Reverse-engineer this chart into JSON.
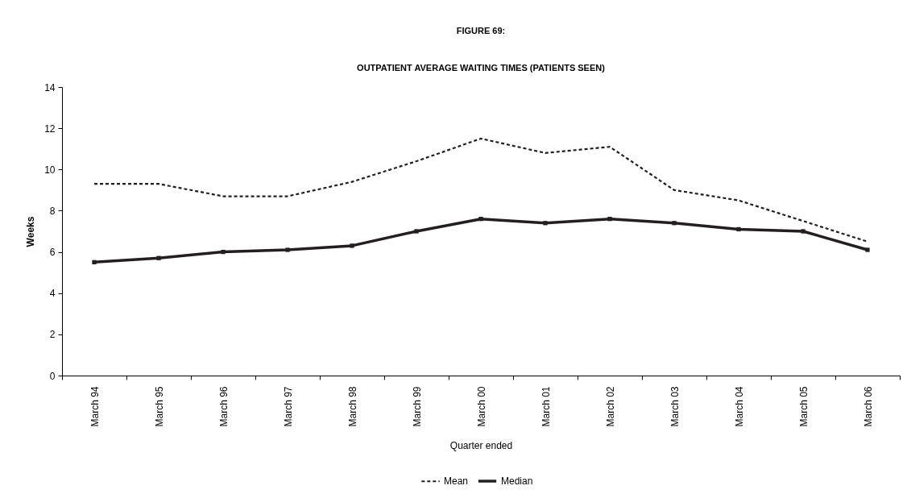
{
  "chart_data": {
    "type": "line",
    "title": "FIGURE 69:",
    "subtitle": "OUTPATIENT AVERAGE WAITING TIMES (PATIENTS SEEN)",
    "xlabel": "Quarter ended",
    "ylabel": "Weeks",
    "categories": [
      "March 94",
      "March 95",
      "March 96",
      "March 97",
      "March 98",
      "March 99",
      "March 00",
      "March 01",
      "March 02",
      "March 03",
      "March 04",
      "March 05",
      "March 06"
    ],
    "series": [
      {
        "name": "Mean",
        "color": "#231f20",
        "line_style": "dashed",
        "marker": "none",
        "values": [
          9.3,
          9.3,
          8.7,
          8.7,
          9.4,
          10.4,
          11.5,
          10.8,
          11.1,
          9.0,
          8.5,
          7.5,
          6.5
        ]
      },
      {
        "name": "Median",
        "color": "#231f20",
        "line_style": "solid",
        "marker": "square",
        "values": [
          5.5,
          5.7,
          6.0,
          6.1,
          6.3,
          7.0,
          7.6,
          7.4,
          7.6,
          7.4,
          7.1,
          7.0,
          6.1
        ]
      }
    ],
    "ylim": [
      0,
      14
    ],
    "yticks": [
      0,
      2,
      4,
      6,
      8,
      10,
      12,
      14
    ],
    "legend": "bottom"
  }
}
